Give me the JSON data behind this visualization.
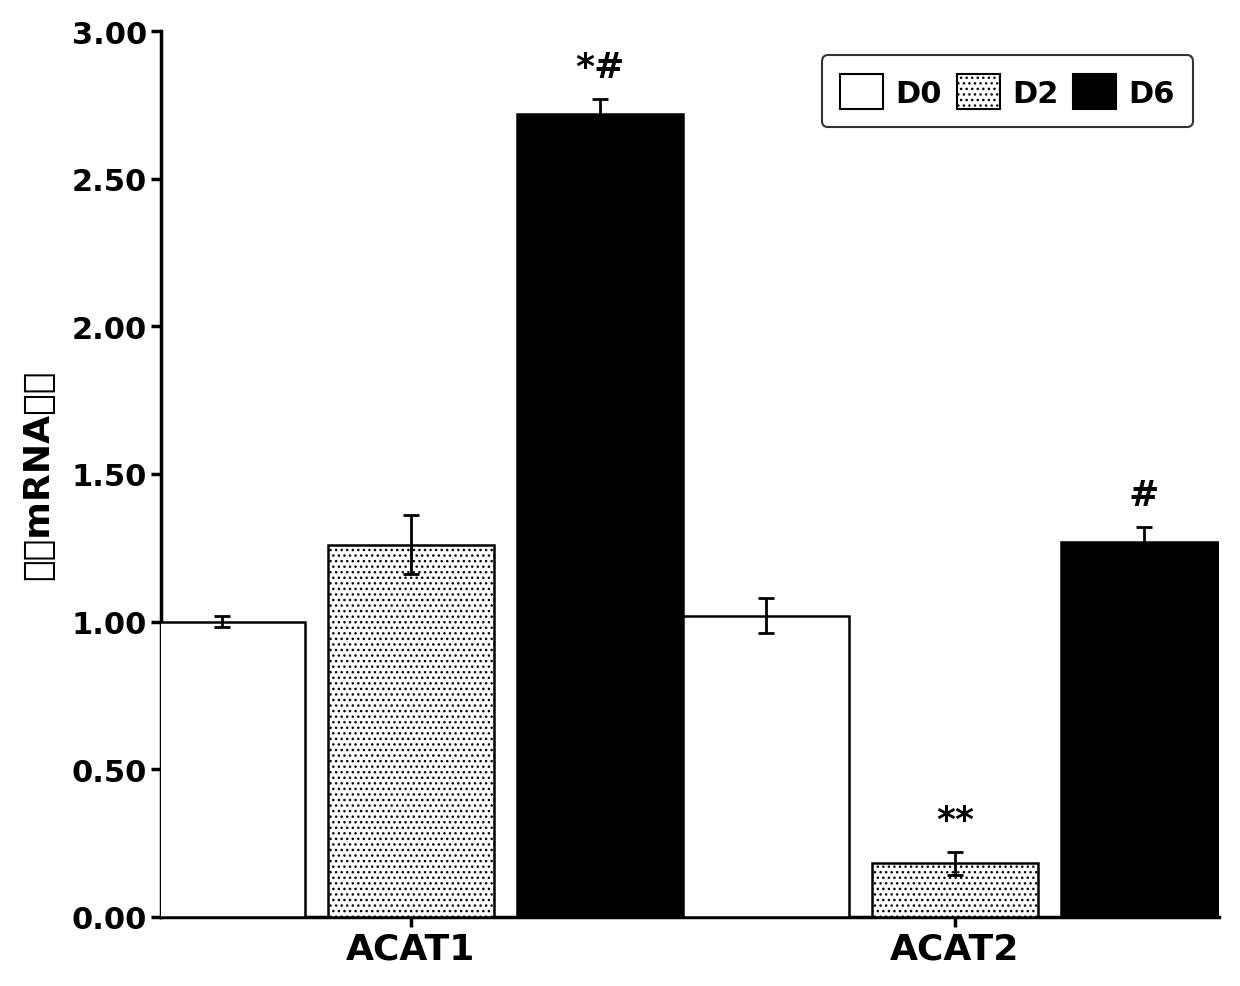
{
  "groups": [
    "ACAT1",
    "ACAT2"
  ],
  "conditions": [
    "D0",
    "D2",
    "D6"
  ],
  "values": {
    "ACAT1": [
      1.0,
      1.26,
      2.72
    ],
    "ACAT2": [
      1.02,
      0.18,
      1.27
    ]
  },
  "errors": {
    "ACAT1": [
      0.02,
      0.1,
      0.05
    ],
    "ACAT2": [
      0.06,
      0.04,
      0.05
    ]
  },
  "bar_colors": [
    "#ffffff",
    "#ffffff",
    "#000000"
  ],
  "bar_hatches": [
    null,
    "...",
    null
  ],
  "bar_edgecolors": [
    "#000000",
    "#000000",
    "#000000"
  ],
  "ylim": [
    0,
    3.0
  ],
  "yticks": [
    0.0,
    0.5,
    1.0,
    1.5,
    2.0,
    2.5,
    3.0
  ],
  "ylabel": "相对mRNA表达",
  "legend_labels": [
    "D0",
    "D2",
    "D6"
  ],
  "annotations": {
    "ACAT1_D6": "*#",
    "ACAT2_D2": "**",
    "ACAT2_D6": "#"
  },
  "bar_width": 0.22,
  "background_color": "#ffffff",
  "tick_fontsize": 22,
  "ylabel_fontsize": 26,
  "xlabel_fontsize": 26,
  "legend_fontsize": 22,
  "annotation_fontsize": 26,
  "group_centers": [
    0.38,
    1.1
  ]
}
